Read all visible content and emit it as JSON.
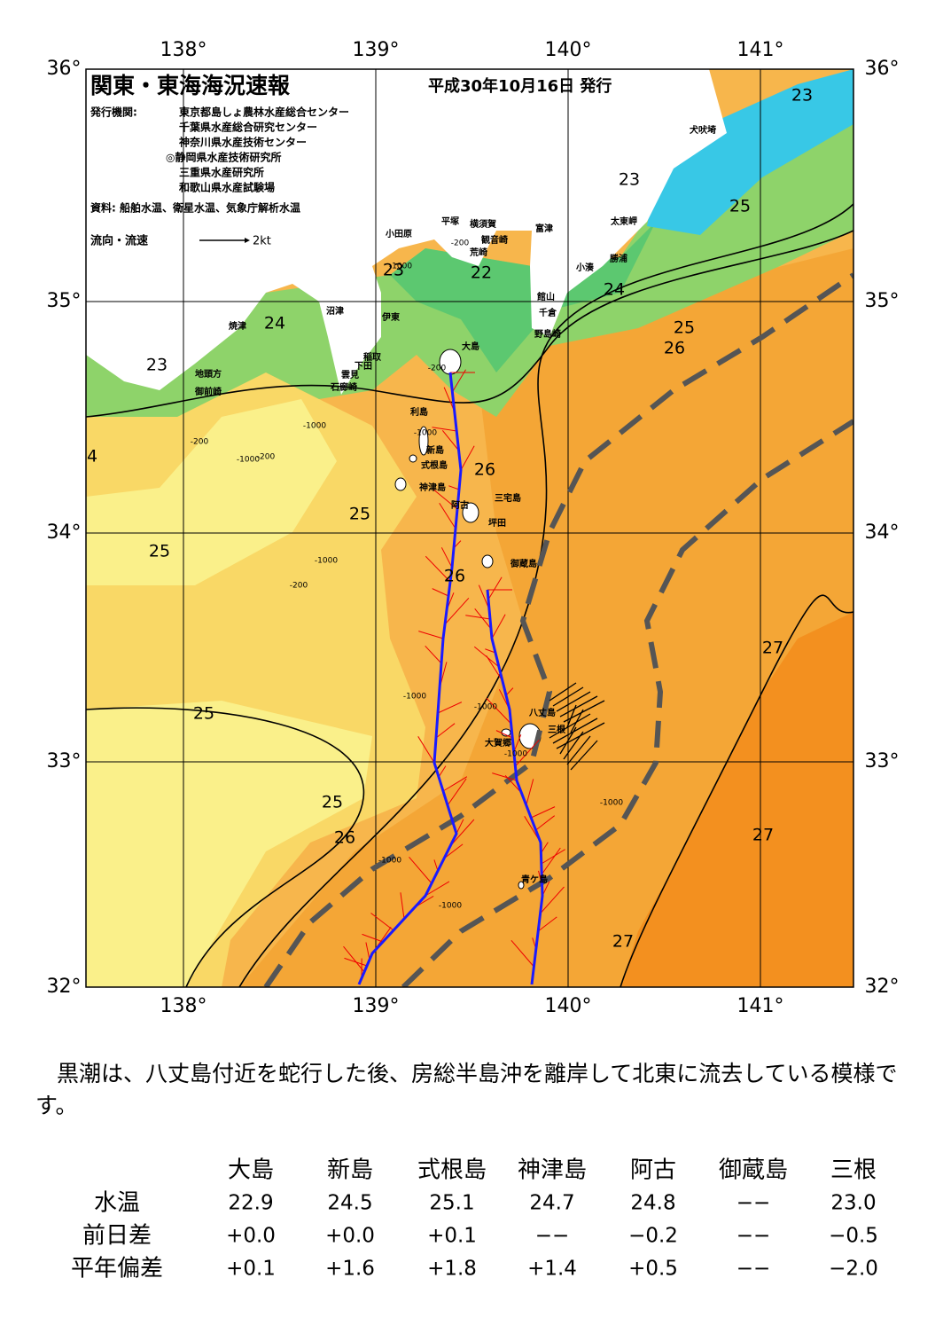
{
  "header": {
    "title": "関東・東海海況速報",
    "date": "平成30年10月16日 発行",
    "issuer_label": "発行機関:",
    "issuers": [
      "東京都島しょ農林水産総合センター",
      "千葉県水産総合研究センター",
      "神奈川県水産技術センター",
      "◎静岡県水産技術研究所",
      "三重県水産研究所",
      "和歌山県水産試験場"
    ],
    "source": "資料: 船舶水温、衛星水温、気象庁解析水温",
    "flow_legend": "流向・流速",
    "speed_legend": "2kt"
  },
  "axes": {
    "lon_labels": [
      "138°",
      "139°",
      "140°",
      "141°"
    ],
    "lat_labels": [
      "36°",
      "35°",
      "34°",
      "33°",
      "32°"
    ]
  },
  "contour_labels": [
    "23",
    "23",
    "25",
    "23",
    "22",
    "24",
    "24",
    "25",
    "26",
    "23",
    "4",
    "26",
    "25",
    "25",
    "26",
    "27",
    "25",
    "25",
    "26",
    "27",
    "27"
  ],
  "depth_labels": [
    "-200",
    "-1000",
    "-200",
    "-1000",
    "-200",
    "-1000",
    "-1000",
    "-200",
    "-1000",
    "-1000",
    "-1000",
    "-1000",
    "-1000",
    "-1000",
    "-1000",
    "-200"
  ],
  "place_labels": [
    "犬吠埼",
    "富津",
    "太東岬",
    "勝浦",
    "小湊",
    "館山",
    "千倉",
    "野島崎",
    "横須賀",
    "観音崎",
    "荒崎",
    "平塚",
    "小田原",
    "沼津",
    "伊東",
    "焼津",
    "稲取",
    "下田",
    "雲見",
    "石廊崎",
    "地頭方",
    "御前崎",
    "大島",
    "利島",
    "新島",
    "式根島",
    "神津島",
    "阿古",
    "三宅島",
    "坪田",
    "御蔵島",
    "八丈島",
    "三根",
    "大賀郷",
    "青ケ島"
  ],
  "description": "黒潮は、八丈島付近を蛇行した後、房総半島沖を離岸して北東に流去している模様です。",
  "table": {
    "columns": [
      "大島",
      "新島",
      "式根島",
      "神津島",
      "阿古",
      "御蔵島",
      "三根"
    ],
    "rows": [
      [
        "水温",
        "22.9",
        "24.5",
        "25.1",
        "24.7",
        "24.8",
        "−−",
        "23.0"
      ],
      [
        "前日差",
        "+0.0",
        "+0.0",
        "+0.1",
        "−−",
        "−0.2",
        "−−",
        "−0.5"
      ],
      [
        "平年偏差",
        "+0.1",
        "+1.6",
        "+1.8",
        "+1.4",
        "+0.5",
        "−−",
        "−2.0"
      ]
    ]
  }
}
